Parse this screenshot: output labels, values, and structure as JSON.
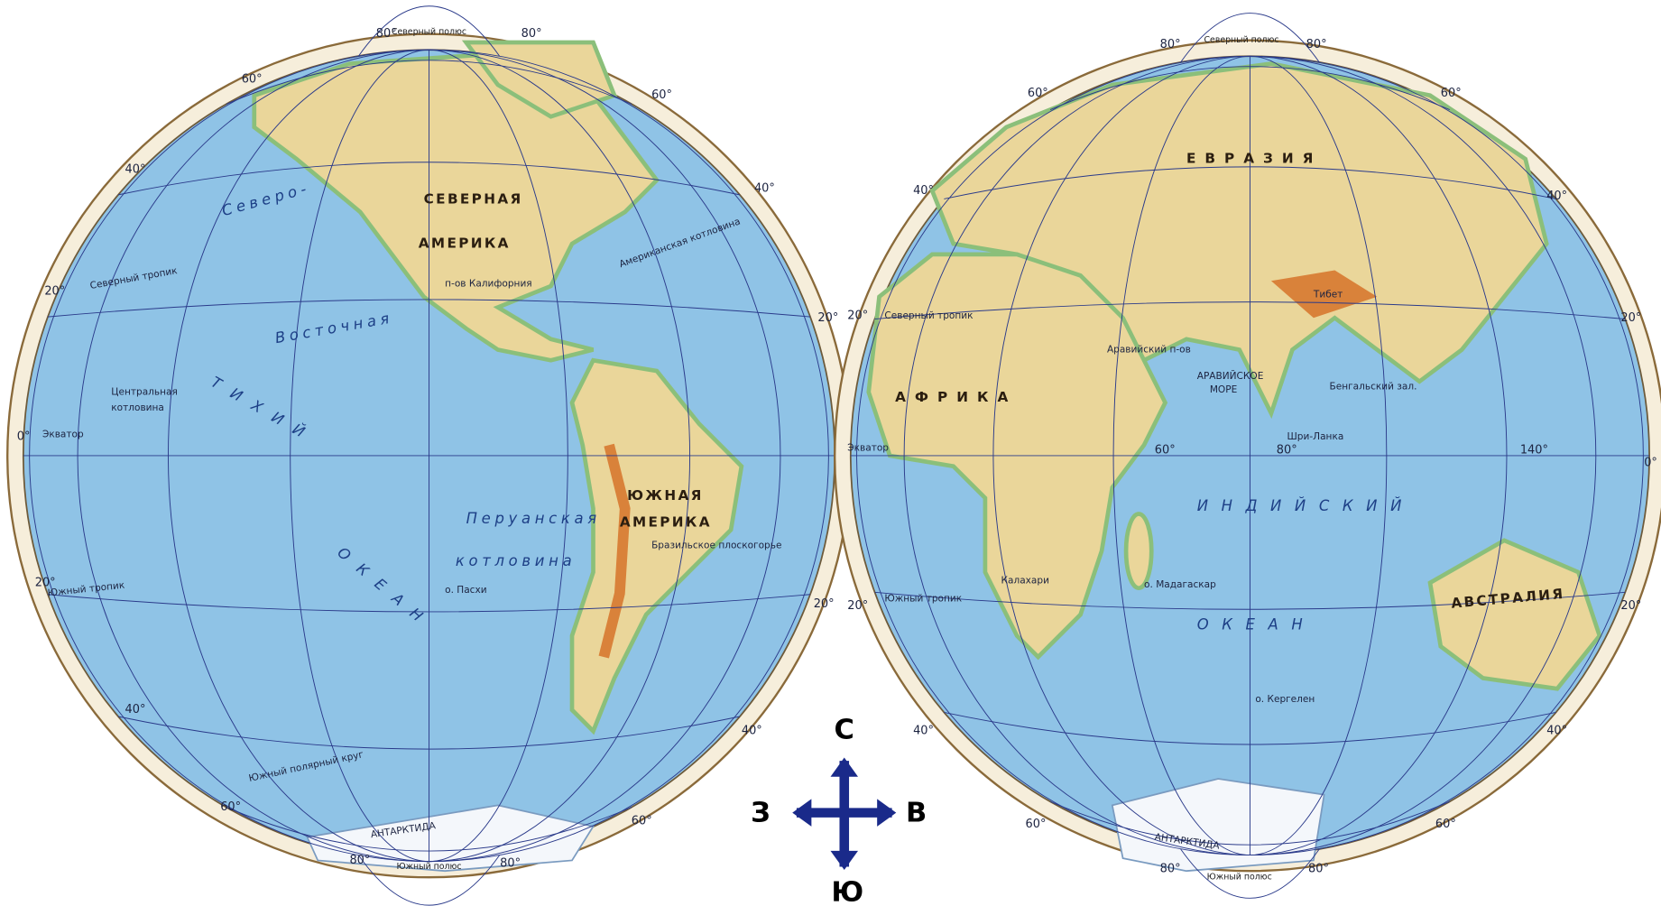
{
  "left_hemisphere": {
    "north_pole": "Северный полюс",
    "south_pole": "Южный полюс",
    "degree_labels": [
      "80°",
      "80°",
      "60°",
      "60°",
      "40°",
      "40°",
      "20°",
      "20°",
      "0°",
      "20°",
      "20°",
      "40°",
      "40°",
      "60°",
      "60°",
      "80°",
      "80°"
    ],
    "labels": [
      "СЕВЕРНАЯ",
      "АМЕРИКА",
      "ЮЖНАЯ",
      "АМЕРИКА",
      "Северный тропик",
      "Экватор",
      "Южный тропик",
      "Южный полярный круг",
      "Перуанская",
      "котловина",
      "Т И Х И Й",
      "О К Е А Н",
      "АНТАРКТИДА",
      "Восточная",
      "Центральная",
      "котловина",
      "п-ов Калифорния",
      "о. Пасхи",
      "Бразильское плоскогорье",
      "Северо-",
      "Американская котловина"
    ]
  },
  "right_hemisphere": {
    "north_pole": "Северный полюс",
    "south_pole": "Южный полюс",
    "degree_labels": [
      "80°",
      "80°",
      "60°",
      "60°",
      "40°",
      "40°",
      "20°",
      "20°",
      "0°",
      "20°",
      "20°",
      "40°",
      "40°",
      "60°",
      "60°",
      "80°",
      "80°",
      "60°",
      "80°",
      "140°"
    ],
    "labels": [
      "Е В Р А З И Я",
      "А Ф Р И К А",
      "АВСТРАЛИЯ",
      "И Н Д И Й С К И Й",
      "О К Е А Н",
      "АРАВИЙСКОЕ",
      "МОРЕ",
      "Тибет",
      "о. Мадагаскар",
      "Шри-Ланка",
      "Калахари",
      "Экватор",
      "Северный тропик",
      "Южный тропик",
      "АНТАРКТИДА",
      "Аравийский п-ов",
      "Бенгальский зал.",
      "о. Кергелен"
    ]
  },
  "compass": {
    "north": "С",
    "west": "З",
    "east": "В",
    "south": "Ю"
  }
}
